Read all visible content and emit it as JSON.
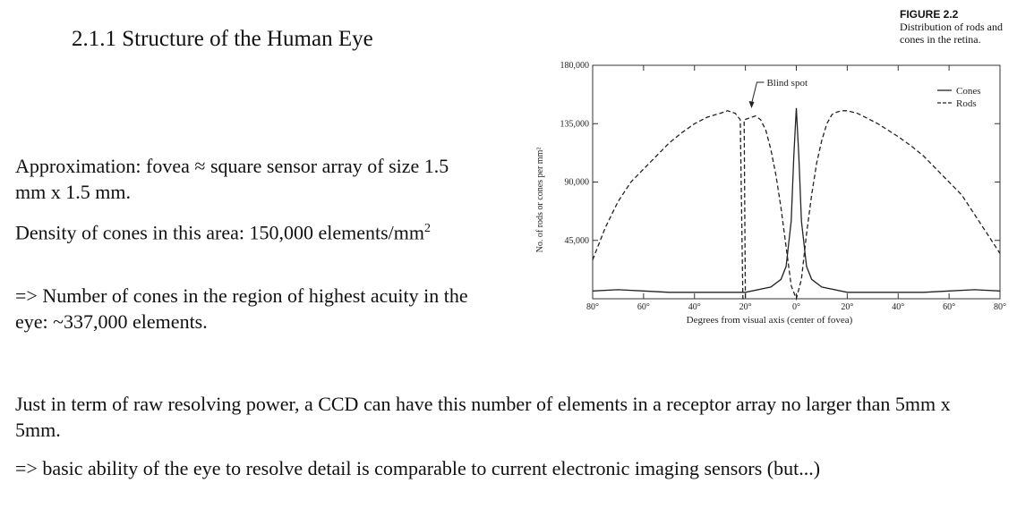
{
  "slide": {
    "title": "2.1.1  Structure of the Human Eye",
    "paragraph_1": "Approximation: fovea ≈ square sensor array of size 1.5 mm x 1.5 mm.",
    "paragraph_2_text": "Density of cones in this area: 150,000 elements/mm",
    "paragraph_2_sup": "2",
    "paragraph_3": "=> Number of cones in the region of highest acuity in the eye: ~337,000 elements.",
    "paragraph_4": "Just in term of raw resolving power, a CCD can have this number of elements in a receptor array no larger than 5mm x 5mm.",
    "paragraph_5": "=> basic ability of the eye to resolve detail is comparable to current electronic imaging sensors (but...)"
  },
  "figure": {
    "label": "FIGURE 2.2",
    "caption": "Distribution of rods and cones in the retina."
  },
  "chart_data": {
    "type": "line",
    "title": "",
    "xlabel": "Degrees from visual axis (center of fovea)",
    "ylabel": "No. of rods or cones per mm²",
    "xlim": [
      -80,
      80
    ],
    "ylim": [
      0,
      180000
    ],
    "x_ticks": [
      -80,
      -60,
      -40,
      -20,
      0,
      20,
      40,
      60,
      80
    ],
    "x_tick_labels": [
      "80°",
      "60°",
      "40°",
      "20°",
      "0°",
      "20°",
      "40°",
      "60°",
      "80°"
    ],
    "y_ticks": [
      45000,
      90000,
      135000,
      180000
    ],
    "y_tick_labels": [
      "45,000",
      "90,000",
      "135,000",
      "180,000"
    ],
    "legend": {
      "position": "top-right",
      "entries": [
        "Cones",
        "Rods"
      ]
    },
    "annotation": {
      "text": "Blind spot",
      "x": -19
    },
    "series": [
      {
        "name": "Cones",
        "style": "solid",
        "x": [
          -80,
          -70,
          -60,
          -50,
          -40,
          -30,
          -20,
          -10,
          -6,
          -4,
          -2,
          -1,
          0,
          1,
          2,
          4,
          6,
          10,
          20,
          30,
          40,
          50,
          60,
          70,
          80
        ],
        "y": [
          6000,
          7000,
          6000,
          5000,
          5000,
          5000,
          5000,
          9000,
          15000,
          25000,
          60000,
          110000,
          147000,
          110000,
          60000,
          25000,
          15000,
          9000,
          5000,
          5000,
          5000,
          5000,
          6000,
          7000,
          6000
        ]
      },
      {
        "name": "Rods",
        "style": "dashed",
        "x": [
          -80,
          -75,
          -70,
          -65,
          -60,
          -55,
          -50,
          -45,
          -40,
          -35,
          -30,
          -27,
          -24,
          -22,
          -21,
          -20,
          -20.5,
          -16,
          -14,
          -12,
          -10,
          -8,
          -6,
          -4,
          -2,
          0,
          2,
          4,
          6,
          8,
          10,
          12,
          14,
          16,
          18,
          20,
          24,
          28,
          32,
          36,
          40,
          45,
          50,
          55,
          60,
          65,
          70,
          75,
          80
        ],
        "y": [
          30000,
          55000,
          75000,
          90000,
          100000,
          110000,
          120000,
          128000,
          135000,
          140000,
          143000,
          145000,
          143000,
          138000,
          0,
          0,
          138000,
          141000,
          138000,
          130000,
          115000,
          95000,
          70000,
          40000,
          10000,
          0,
          15000,
          50000,
          80000,
          105000,
          122000,
          135000,
          142000,
          144000,
          145000,
          145000,
          143000,
          139000,
          135000,
          130000,
          125000,
          118000,
          110000,
          100000,
          90000,
          80000,
          65000,
          50000,
          35000
        ]
      }
    ]
  }
}
